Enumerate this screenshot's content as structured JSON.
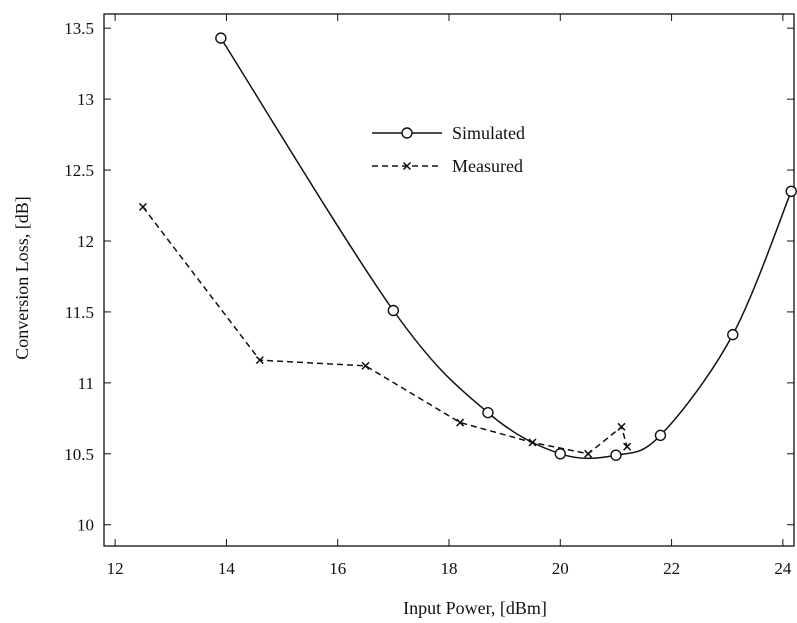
{
  "chart_data": {
    "type": "line",
    "title": "",
    "xlabel": "Input Power, [dBm]",
    "ylabel": "Conversion Loss, [dB]",
    "xlim": [
      11.8,
      24.2
    ],
    "ylim": [
      9.85,
      13.6
    ],
    "xticks": [
      12,
      14,
      16,
      18,
      20,
      22,
      24
    ],
    "yticks": [
      10,
      10.5,
      11,
      11.5,
      12,
      12.5,
      13,
      13.5
    ],
    "grid": false,
    "legend_position": "upper-center",
    "series": [
      {
        "name": "Simulated",
        "style": "solid",
        "marker": "circle",
        "color": "#111111",
        "x": [
          13.9,
          17.0,
          18.7,
          20.0,
          21.0,
          21.8,
          23.1,
          24.15
        ],
        "y": [
          13.43,
          11.51,
          10.79,
          10.5,
          10.49,
          10.63,
          11.34,
          12.35
        ]
      },
      {
        "name": "Measured",
        "style": "dashed",
        "marker": "x",
        "color": "#111111",
        "x": [
          12.5,
          14.6,
          16.5,
          18.2,
          19.5,
          20.5,
          21.1,
          21.2
        ],
        "y": [
          12.24,
          11.16,
          11.12,
          10.72,
          10.58,
          10.5,
          10.69,
          10.55
        ]
      }
    ]
  }
}
